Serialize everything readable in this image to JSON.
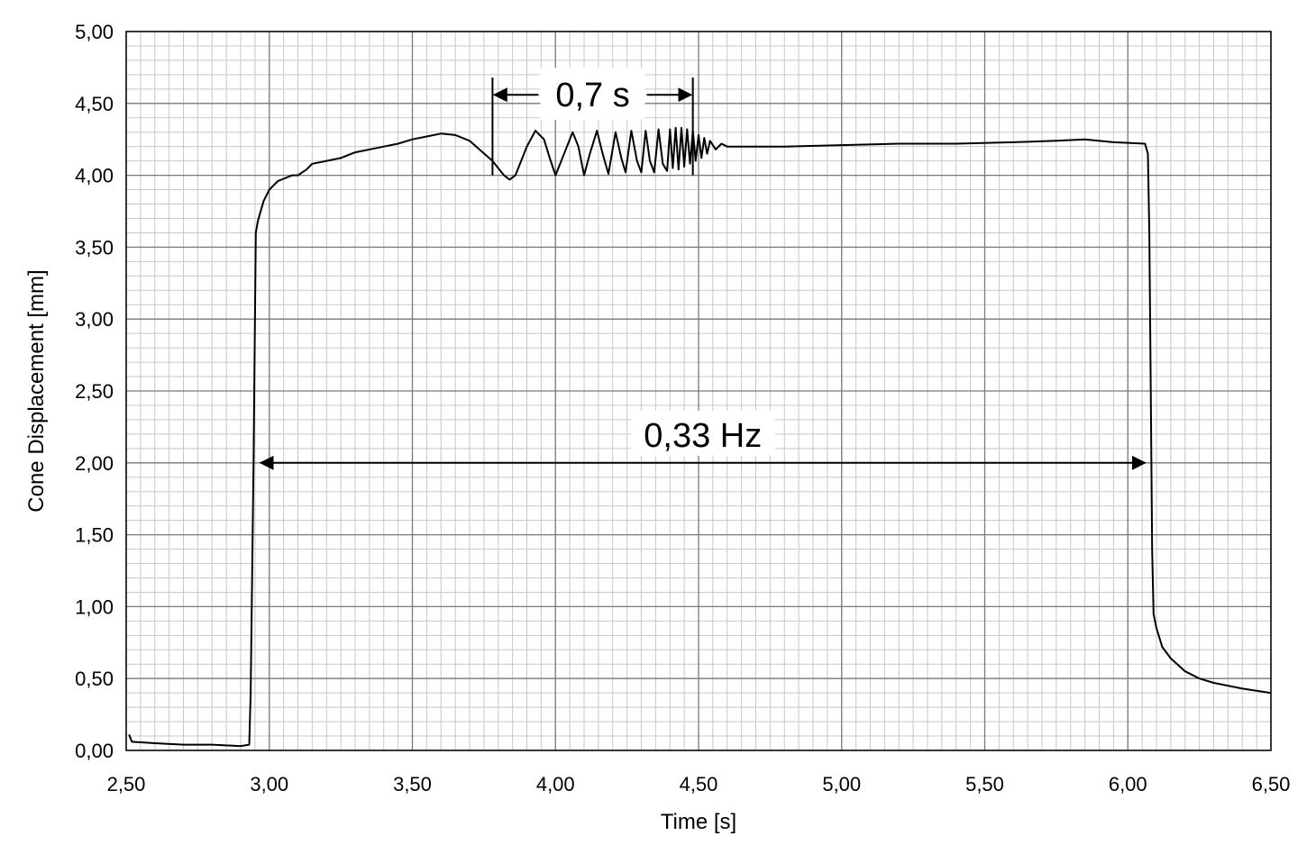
{
  "chart_data": {
    "type": "line",
    "title": "",
    "xlabel": "Time [s]",
    "ylabel": "Cone Displacement [mm]",
    "xlim": [
      2.5,
      6.5
    ],
    "ylim": [
      0,
      5
    ],
    "x_ticks": [
      "2,50",
      "3,00",
      "3,50",
      "4,00",
      "4,50",
      "5,00",
      "5,50",
      "6,00",
      "6,50"
    ],
    "y_ticks": [
      "0,00",
      "0,50",
      "1,00",
      "1,50",
      "2,00",
      "2,50",
      "3,00",
      "3,50",
      "4,00",
      "4,50",
      "5,00"
    ],
    "grid": "major and minor",
    "legend": "none",
    "line_color": "#000000",
    "series": [
      {
        "points": [
          [
            2.51,
            0.11
          ],
          [
            2.52,
            0.06
          ],
          [
            2.6,
            0.05
          ],
          [
            2.7,
            0.04
          ],
          [
            2.8,
            0.04
          ],
          [
            2.9,
            0.03
          ],
          [
            2.93,
            0.04
          ],
          [
            2.935,
            0.4
          ],
          [
            2.945,
            2.0
          ],
          [
            2.953,
            3.6
          ],
          [
            2.96,
            3.68
          ],
          [
            2.98,
            3.82
          ],
          [
            3.0,
            3.9
          ],
          [
            3.03,
            3.96
          ],
          [
            3.08,
            4.0
          ],
          [
            3.1,
            4.0
          ],
          [
            3.13,
            4.04
          ],
          [
            3.15,
            4.08
          ],
          [
            3.2,
            4.1
          ],
          [
            3.25,
            4.12
          ],
          [
            3.3,
            4.16
          ],
          [
            3.4,
            4.2
          ],
          [
            3.45,
            4.22
          ],
          [
            3.5,
            4.25
          ],
          [
            3.55,
            4.27
          ],
          [
            3.6,
            4.29
          ],
          [
            3.65,
            4.28
          ],
          [
            3.7,
            4.24
          ],
          [
            3.74,
            4.17
          ],
          [
            3.78,
            4.1
          ],
          [
            3.82,
            4.0
          ],
          [
            3.84,
            3.97
          ],
          [
            3.86,
            4.0
          ],
          [
            3.9,
            4.2
          ],
          [
            3.93,
            4.31
          ],
          [
            3.96,
            4.25
          ],
          [
            3.98,
            4.12
          ],
          [
            4.0,
            4.0
          ],
          [
            4.03,
            4.15
          ],
          [
            4.06,
            4.3
          ],
          [
            4.08,
            4.2
          ],
          [
            4.1,
            4.0
          ],
          [
            4.12,
            4.15
          ],
          [
            4.145,
            4.31
          ],
          [
            4.165,
            4.15
          ],
          [
            4.185,
            4.01
          ],
          [
            4.21,
            4.3
          ],
          [
            4.23,
            4.12
          ],
          [
            4.245,
            4.02
          ],
          [
            4.265,
            4.31
          ],
          [
            4.285,
            4.1
          ],
          [
            4.3,
            4.02
          ],
          [
            4.315,
            4.31
          ],
          [
            4.33,
            4.1
          ],
          [
            4.345,
            4.02
          ],
          [
            4.36,
            4.32
          ],
          [
            4.375,
            4.08
          ],
          [
            4.39,
            4.03
          ],
          [
            4.4,
            4.32
          ],
          [
            4.41,
            4.05
          ],
          [
            4.42,
            4.33
          ],
          [
            4.43,
            4.04
          ],
          [
            4.44,
            4.33
          ],
          [
            4.45,
            4.06
          ],
          [
            4.46,
            4.32
          ],
          [
            4.47,
            4.08
          ],
          [
            4.48,
            4.31
          ],
          [
            4.49,
            4.1
          ],
          [
            4.5,
            4.28
          ],
          [
            4.51,
            4.12
          ],
          [
            4.52,
            4.26
          ],
          [
            4.53,
            4.15
          ],
          [
            4.54,
            4.24
          ],
          [
            4.56,
            4.18
          ],
          [
            4.58,
            4.22
          ],
          [
            4.6,
            4.2
          ],
          [
            4.7,
            4.2
          ],
          [
            4.8,
            4.2
          ],
          [
            5.0,
            4.21
          ],
          [
            5.2,
            4.22
          ],
          [
            5.4,
            4.22
          ],
          [
            5.6,
            4.23
          ],
          [
            5.75,
            4.24
          ],
          [
            5.85,
            4.25
          ],
          [
            5.95,
            4.23
          ],
          [
            6.06,
            4.22
          ],
          [
            6.07,
            4.15
          ],
          [
            6.075,
            3.6
          ],
          [
            6.08,
            2.5
          ],
          [
            6.085,
            1.4
          ],
          [
            6.09,
            0.95
          ],
          [
            6.1,
            0.85
          ],
          [
            6.12,
            0.72
          ],
          [
            6.15,
            0.64
          ],
          [
            6.2,
            0.55
          ],
          [
            6.25,
            0.5
          ],
          [
            6.3,
            0.47
          ],
          [
            6.4,
            0.43
          ],
          [
            6.5,
            0.4
          ]
        ]
      }
    ],
    "annotations": [
      {
        "text": "0,7 s",
        "x_start": 3.78,
        "x_end": 4.48,
        "y": 4.56,
        "bracket_bottom": 4.0,
        "bracket_top": 4.68
      },
      {
        "text": "0,33 Hz",
        "x_start": 2.97,
        "x_end": 6.06,
        "y": 2.0
      }
    ]
  }
}
